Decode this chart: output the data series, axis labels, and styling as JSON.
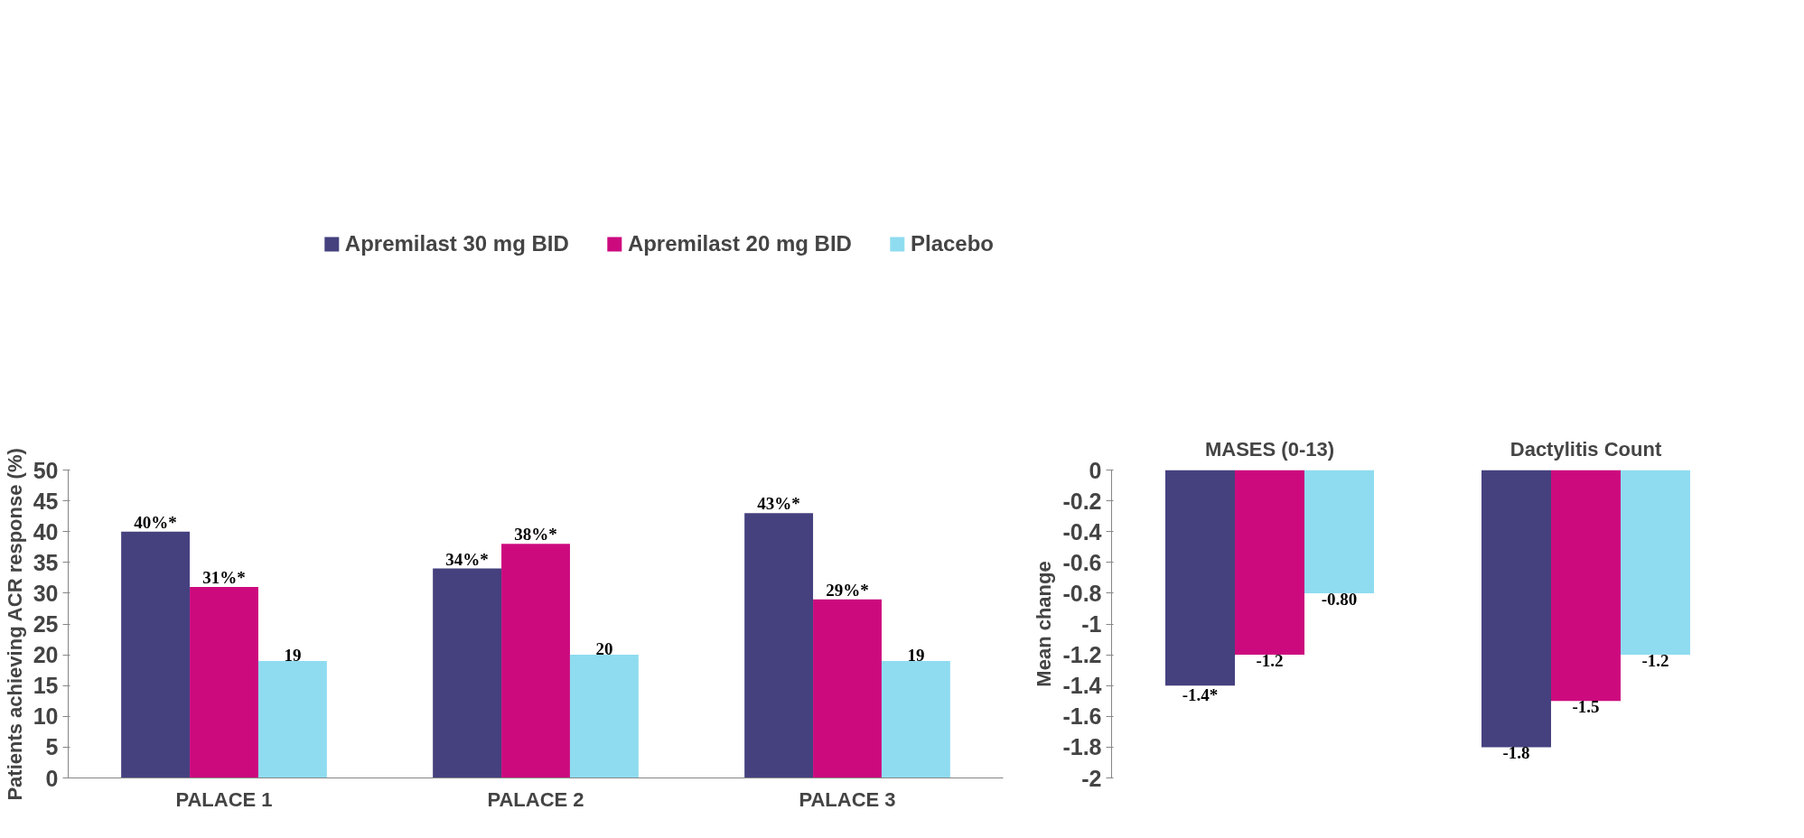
{
  "chart_data": [
    {
      "type": "bar",
      "categories": [
        "PALACE 1",
        "PALACE 2",
        "PALACE 3"
      ],
      "ylabel": "Patients achieving ACR response (%)",
      "ylim": [
        0,
        50
      ],
      "yticks": [
        0,
        5,
        10,
        15,
        20,
        25,
        30,
        35,
        40,
        45,
        50
      ],
      "grid": false,
      "legend": "top",
      "series": [
        {
          "name": "Apremilast 30 mg BID",
          "color": "#45417f",
          "values": [
            40,
            34,
            43
          ],
          "value_labels": [
            "40%*",
            "34%*",
            "43%*"
          ]
        },
        {
          "name": "Apremilast 20 mg BID",
          "color": "#cc0a7e",
          "values": [
            31,
            38,
            29
          ],
          "value_labels": [
            "31%*",
            "38%*",
            "29%*"
          ]
        },
        {
          "name": "Placebo",
          "color": "#8fdcf0",
          "values": [
            19,
            20,
            19
          ],
          "value_labels": [
            "19",
            "20",
            "19"
          ]
        }
      ]
    },
    {
      "type": "bar",
      "categories": [
        "MASES (0-13)",
        "Dactylitis Count"
      ],
      "ylabel": "Mean change",
      "ylim": [
        -2,
        0
      ],
      "yticks": [
        0,
        -0.2,
        -0.4,
        -0.6,
        -0.8,
        -1,
        -1.2,
        -1.4,
        -1.6,
        -1.8,
        -2
      ],
      "grid": false,
      "series": [
        {
          "color": "#45417f",
          "values": [
            -1.4,
            -1.8
          ],
          "value_labels": [
            "-1.4*",
            "-1.8"
          ]
        },
        {
          "color": "#cc0a7e",
          "values": [
            -1.2,
            -1.5
          ],
          "value_labels": [
            "-1.2",
            "-1.5"
          ]
        },
        {
          "color": "#8fdcf0",
          "values": [
            -0.8,
            -1.2
          ],
          "value_labels": [
            "-0.80",
            "-1.2"
          ]
        }
      ]
    }
  ]
}
